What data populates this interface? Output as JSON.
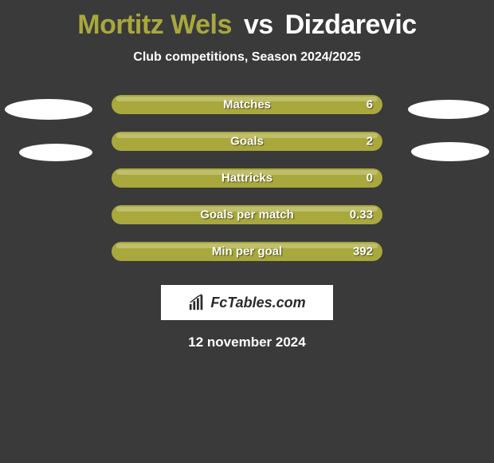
{
  "header": {
    "player1": "Mortitz Wels",
    "vs": "vs",
    "player2": "Dizdarevic",
    "subtitle": "Club competitions, Season 2024/2025"
  },
  "colors": {
    "player1_accent": "#a8a83d",
    "bar_fill": "#a8a83d",
    "bar_track": "#626262",
    "background": "#3a3a3a",
    "text": "#ffffff"
  },
  "stats": [
    {
      "label": "Matches",
      "value": "6",
      "fill_pct": 100
    },
    {
      "label": "Goals",
      "value": "2",
      "fill_pct": 100
    },
    {
      "label": "Hattricks",
      "value": "0",
      "fill_pct": 100
    },
    {
      "label": "Goals per match",
      "value": "0.33",
      "fill_pct": 100
    },
    {
      "label": "Min per goal",
      "value": "392",
      "fill_pct": 100
    }
  ],
  "logo": {
    "text": "FcTables.com"
  },
  "date": "12 november 2024"
}
